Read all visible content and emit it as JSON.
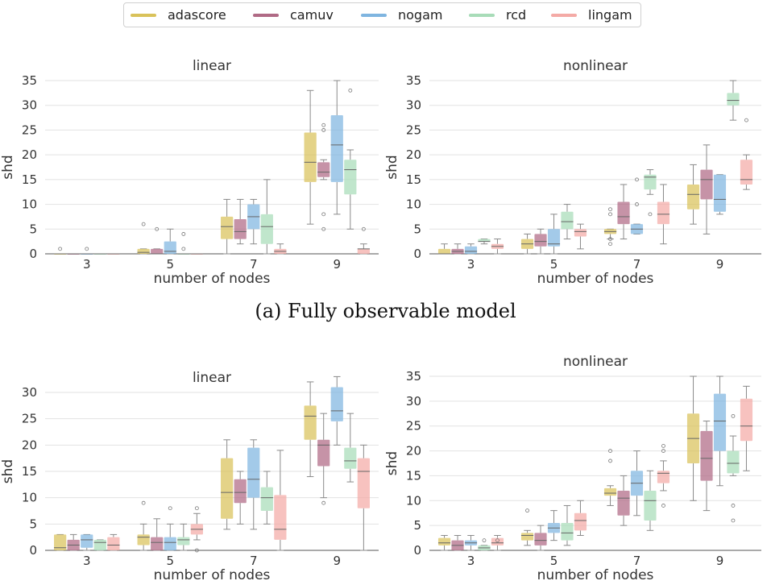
{
  "legend": [
    "adascore",
    "camuv",
    "nogam",
    "rcd",
    "lingam"
  ],
  "colors": {
    "adascore": "#d9c25a",
    "camuv": "#b06a85",
    "nogam": "#7fb5e0",
    "rcd": "#a8dcb8",
    "lingam": "#f4aaa6"
  },
  "captions": {
    "fully_observable": "(a) Fully observable model"
  },
  "chart_data": [
    {
      "type": "box",
      "title": "linear",
      "xlabel": "number of nodes",
      "ylabel": "shd",
      "categories": [
        "3",
        "5",
        "7",
        "9"
      ],
      "ylim": [
        0,
        35
      ],
      "yticks": [
        0,
        5,
        10,
        15,
        20,
        25,
        30,
        35
      ],
      "series": [
        {
          "name": "adascore",
          "boxes": [
            {
              "min": 0,
              "q1": 0,
              "median": 0,
              "q3": 0,
              "max": 0,
              "outliers": [
                1
              ]
            },
            {
              "min": 0,
              "q1": 0,
              "median": 0.3,
              "q3": 1,
              "max": 1,
              "outliers": [
                6
              ]
            },
            {
              "min": 0,
              "q1": 3,
              "median": 5.5,
              "q3": 7.5,
              "max": 11,
              "outliers": []
            },
            {
              "min": 6,
              "q1": 14.5,
              "median": 18.5,
              "q3": 24.5,
              "max": 33,
              "outliers": []
            }
          ]
        },
        {
          "name": "camuv",
          "boxes": [
            {
              "min": 0,
              "q1": 0,
              "median": 0,
              "q3": 0,
              "max": 0,
              "outliers": []
            },
            {
              "min": 0,
              "q1": 0,
              "median": 0,
              "q3": 1,
              "max": 1,
              "outliers": [
                5
              ]
            },
            {
              "min": 2,
              "q1": 3,
              "median": 4.5,
              "q3": 7,
              "max": 11,
              "outliers": []
            },
            {
              "min": 15,
              "q1": 15.5,
              "median": 16.5,
              "q3": 18.5,
              "max": 19,
              "outliers": [
                26,
                25,
                8,
                5
              ]
            }
          ]
        },
        {
          "name": "nogam",
          "boxes": [
            {
              "min": 0,
              "q1": 0,
              "median": 0,
              "q3": 0,
              "max": 0,
              "outliers": [
                1
              ]
            },
            {
              "min": 0,
              "q1": 0,
              "median": 0.5,
              "q3": 2.5,
              "max": 5,
              "outliers": []
            },
            {
              "min": 2,
              "q1": 5,
              "median": 7.5,
              "q3": 10,
              "max": 11,
              "outliers": []
            },
            {
              "min": 8,
              "q1": 14.5,
              "median": 22,
              "q3": 28,
              "max": 35,
              "outliers": []
            }
          ]
        },
        {
          "name": "rcd",
          "boxes": [
            {
              "min": 0,
              "q1": 0,
              "median": 0,
              "q3": 0,
              "max": 0,
              "outliers": []
            },
            {
              "min": 0,
              "q1": 0,
              "median": 0,
              "q3": 0,
              "max": 0,
              "outliers": [
                4,
                1
              ]
            },
            {
              "min": 0,
              "q1": 2,
              "median": 5.5,
              "q3": 8,
              "max": 15,
              "outliers": []
            },
            {
              "min": 5,
              "q1": 12,
              "median": 17,
              "q3": 19,
              "max": 21,
              "outliers": [
                33
              ]
            }
          ]
        },
        {
          "name": "lingam",
          "boxes": [
            {
              "min": 0,
              "q1": 0,
              "median": 0,
              "q3": 0,
              "max": 0,
              "outliers": []
            },
            {
              "min": 0,
              "q1": 0,
              "median": 0,
              "q3": 0,
              "max": 0,
              "outliers": []
            },
            {
              "min": 0,
              "q1": 0,
              "median": 0.5,
              "q3": 1,
              "max": 2,
              "outliers": []
            },
            {
              "min": 0,
              "q1": 0,
              "median": 1,
              "q3": 1,
              "max": 2,
              "outliers": [
                5
              ]
            }
          ]
        }
      ]
    },
    {
      "type": "box",
      "title": "nonlinear",
      "xlabel": "number of nodes",
      "ylabel": "shd",
      "categories": [
        "3",
        "5",
        "7",
        "9"
      ],
      "ylim": [
        0,
        35
      ],
      "yticks": [
        0,
        5,
        10,
        15,
        20,
        25,
        30,
        35
      ],
      "series": [
        {
          "name": "adascore",
          "boxes": [
            {
              "min": 0,
              "q1": 0,
              "median": 0,
              "q3": 1,
              "max": 2,
              "outliers": []
            },
            {
              "min": 0,
              "q1": 1,
              "median": 2,
              "q3": 3,
              "max": 4,
              "outliers": []
            },
            {
              "min": 3,
              "q1": 4,
              "median": 4.5,
              "q3": 5,
              "max": 5,
              "outliers": [
                9,
                8,
                3,
                2
              ]
            },
            {
              "min": 6,
              "q1": 9,
              "median": 12,
              "q3": 14,
              "max": 18,
              "outliers": []
            }
          ]
        },
        {
          "name": "camuv",
          "boxes": [
            {
              "min": 0,
              "q1": 0,
              "median": 0.5,
              "q3": 1,
              "max": 2,
              "outliers": []
            },
            {
              "min": 0,
              "q1": 1.5,
              "median": 2.5,
              "q3": 4,
              "max": 5,
              "outliers": []
            },
            {
              "min": 3,
              "q1": 6,
              "median": 7.5,
              "q3": 10.5,
              "max": 14,
              "outliers": []
            },
            {
              "min": 4,
              "q1": 11,
              "median": 15,
              "q3": 17,
              "max": 22,
              "outliers": []
            }
          ]
        },
        {
          "name": "nogam",
          "boxes": [
            {
              "min": 0,
              "q1": 0,
              "median": 0.5,
              "q3": 1.5,
              "max": 2,
              "outliers": []
            },
            {
              "min": 0,
              "q1": 1.5,
              "median": 2,
              "q3": 5,
              "max": 8,
              "outliers": []
            },
            {
              "min": 4,
              "q1": 4,
              "median": 5,
              "q3": 6,
              "max": 6,
              "outliers": [
                15,
                10
              ]
            },
            {
              "min": 8,
              "q1": 8.5,
              "median": 11,
              "q3": 16,
              "max": 16,
              "outliers": []
            }
          ]
        },
        {
          "name": "rcd",
          "boxes": [
            {
              "min": 2,
              "q1": 2.5,
              "median": 2.5,
              "q3": 3,
              "max": 3,
              "outliers": []
            },
            {
              "min": 3,
              "q1": 5,
              "median": 6.5,
              "q3": 8.5,
              "max": 10,
              "outliers": []
            },
            {
              "min": 12,
              "q1": 13,
              "median": 15.5,
              "q3": 16,
              "max": 17,
              "outliers": [
                8
              ]
            },
            {
              "min": 27,
              "q1": 30,
              "median": 31,
              "q3": 32.5,
              "max": 35,
              "outliers": []
            }
          ]
        },
        {
          "name": "lingam",
          "boxes": [
            {
              "min": 0,
              "q1": 1,
              "median": 1.5,
              "q3": 2,
              "max": 3,
              "outliers": []
            },
            {
              "min": 1,
              "q1": 3.5,
              "median": 4.5,
              "q3": 5,
              "max": 6,
              "outliers": []
            },
            {
              "min": 2,
              "q1": 6,
              "median": 8,
              "q3": 10.5,
              "max": 14,
              "outliers": []
            },
            {
              "min": 13,
              "q1": 14,
              "median": 15,
              "q3": 19,
              "max": 20,
              "outliers": [
                27
              ]
            }
          ]
        }
      ]
    },
    {
      "type": "box",
      "title": "linear",
      "xlabel": "number of nodes",
      "ylabel": "shd",
      "categories": [
        "3",
        "5",
        "7",
        "9"
      ],
      "ylim": [
        0,
        33
      ],
      "yticks": [
        0,
        5,
        10,
        15,
        20,
        25,
        30
      ],
      "series": [
        {
          "name": "adascore",
          "boxes": [
            {
              "min": 0,
              "q1": 0,
              "median": 0.5,
              "q3": 3,
              "max": 3,
              "outliers": []
            },
            {
              "min": 0,
              "q1": 1,
              "median": 2.5,
              "q3": 3,
              "max": 5,
              "outliers": [
                9
              ]
            },
            {
              "min": 4,
              "q1": 6,
              "median": 11,
              "q3": 17.5,
              "max": 21,
              "outliers": []
            },
            {
              "min": 14,
              "q1": 21,
              "median": 25.5,
              "q3": 27.5,
              "max": 32,
              "outliers": []
            }
          ]
        },
        {
          "name": "camuv",
          "boxes": [
            {
              "min": 0,
              "q1": 0,
              "median": 1,
              "q3": 2,
              "max": 3,
              "outliers": []
            },
            {
              "min": 0,
              "q1": 0,
              "median": 1.5,
              "q3": 2.5,
              "max": 6,
              "outliers": []
            },
            {
              "min": 5,
              "q1": 9,
              "median": 11,
              "q3": 13.5,
              "max": 15,
              "outliers": []
            },
            {
              "min": 10,
              "q1": 16,
              "median": 20,
              "q3": 21,
              "max": 26,
              "outliers": [
                9
              ]
            }
          ]
        },
        {
          "name": "nogam",
          "boxes": [
            {
              "min": 0,
              "q1": 0.5,
              "median": 2,
              "q3": 3,
              "max": 3,
              "outliers": []
            },
            {
              "min": 0,
              "q1": 0,
              "median": 1.5,
              "q3": 2.5,
              "max": 5,
              "outliers": [
                8
              ]
            },
            {
              "min": 4,
              "q1": 10,
              "median": 13.5,
              "q3": 19.5,
              "max": 21,
              "outliers": []
            },
            {
              "min": 20,
              "q1": 24.5,
              "median": 26.5,
              "q3": 31,
              "max": 33,
              "outliers": []
            }
          ]
        },
        {
          "name": "rcd",
          "boxes": [
            {
              "min": 0,
              "q1": 0,
              "median": 1.5,
              "q3": 2,
              "max": 2,
              "outliers": []
            },
            {
              "min": 0,
              "q1": 1,
              "median": 2,
              "q3": 2.5,
              "max": 5,
              "outliers": []
            },
            {
              "min": 5,
              "q1": 7.5,
              "median": 10,
              "q3": 12,
              "max": 15,
              "outliers": []
            },
            {
              "min": 13,
              "q1": 15.5,
              "median": 17,
              "q3": 19.5,
              "max": 26,
              "outliers": []
            }
          ]
        },
        {
          "name": "lingam",
          "boxes": [
            {
              "min": 0,
              "q1": 0,
              "median": 1,
              "q3": 2.5,
              "max": 3,
              "outliers": []
            },
            {
              "min": 2,
              "q1": 3,
              "median": 4,
              "q3": 5,
              "max": 7,
              "outliers": [
                8,
                0
              ]
            },
            {
              "min": 0,
              "q1": 2,
              "median": 4,
              "q3": 10.5,
              "max": 19,
              "outliers": []
            },
            {
              "min": 0,
              "q1": 8,
              "median": 15,
              "q3": 17.5,
              "max": 20,
              "outliers": []
            }
          ]
        }
      ]
    },
    {
      "type": "box",
      "title": "nonlinear",
      "xlabel": "number of nodes",
      "ylabel": "shd",
      "categories": [
        "3",
        "5",
        "7",
        "9"
      ],
      "ylim": [
        0,
        35
      ],
      "yticks": [
        0,
        5,
        10,
        15,
        20,
        25,
        30,
        35
      ],
      "series": [
        {
          "name": "adascore",
          "boxes": [
            {
              "min": 0,
              "q1": 1,
              "median": 1.5,
              "q3": 2.5,
              "max": 3,
              "outliers": []
            },
            {
              "min": 1,
              "q1": 2,
              "median": 3,
              "q3": 3.5,
              "max": 4,
              "outliers": [
                8
              ]
            },
            {
              "min": 9,
              "q1": 11,
              "median": 11.5,
              "q3": 12.5,
              "max": 13,
              "outliers": [
                20,
                18
              ]
            },
            {
              "min": 10,
              "q1": 17.5,
              "median": 22.5,
              "q3": 27.5,
              "max": 35,
              "outliers": []
            }
          ]
        },
        {
          "name": "camuv",
          "boxes": [
            {
              "min": 0,
              "q1": 0,
              "median": 1,
              "q3": 2,
              "max": 3,
              "outliers": []
            },
            {
              "min": 0,
              "q1": 1,
              "median": 2,
              "q3": 3.5,
              "max": 5,
              "outliers": []
            },
            {
              "min": 5,
              "q1": 7,
              "median": 10.5,
              "q3": 12,
              "max": 15,
              "outliers": []
            },
            {
              "min": 8,
              "q1": 14,
              "median": 18.5,
              "q3": 24,
              "max": 26,
              "outliers": []
            }
          ]
        },
        {
          "name": "nogam",
          "boxes": [
            {
              "min": 0,
              "q1": 1,
              "median": 1.5,
              "q3": 2,
              "max": 3,
              "outliers": []
            },
            {
              "min": 2,
              "q1": 3.5,
              "median": 4.5,
              "q3": 5.5,
              "max": 8,
              "outliers": []
            },
            {
              "min": 7,
              "q1": 11,
              "median": 13.5,
              "q3": 16,
              "max": 20,
              "outliers": []
            },
            {
              "min": 13,
              "q1": 20,
              "median": 26,
              "q3": 31.5,
              "max": 35,
              "outliers": []
            }
          ]
        },
        {
          "name": "rcd",
          "boxes": [
            {
              "min": 0,
              "q1": 0,
              "median": 0.5,
              "q3": 1,
              "max": 1,
              "outliers": [
                2
              ]
            },
            {
              "min": 1,
              "q1": 2,
              "median": 3.5,
              "q3": 5.5,
              "max": 9,
              "outliers": []
            },
            {
              "min": 4,
              "q1": 6,
              "median": 10,
              "q3": 12,
              "max": 16,
              "outliers": []
            },
            {
              "min": 15,
              "q1": 15.5,
              "median": 17.5,
              "q3": 20,
              "max": 23,
              "outliers": [
                27,
                9,
                6
              ]
            }
          ]
        },
        {
          "name": "lingam",
          "boxes": [
            {
              "min": 0,
              "q1": 1,
              "median": 1.5,
              "q3": 2.5,
              "max": 3,
              "outliers": [
                2
              ]
            },
            {
              "min": 3,
              "q1": 4,
              "median": 6,
              "q3": 7.5,
              "max": 10,
              "outliers": []
            },
            {
              "min": 12,
              "q1": 13.5,
              "median": 15.5,
              "q3": 16,
              "max": 18,
              "outliers": [
                21,
                20,
                9
              ]
            },
            {
              "min": 16,
              "q1": 22,
              "median": 25,
              "q3": 30.5,
              "max": 33,
              "outliers": []
            }
          ]
        }
      ]
    }
  ]
}
